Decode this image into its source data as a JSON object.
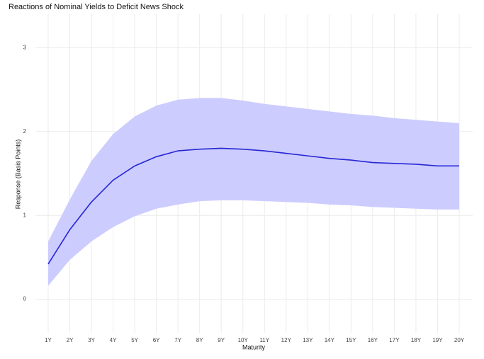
{
  "chart_data": {
    "type": "line",
    "title": "Reactions of Nominal Yields to Deficit News Shock",
    "x_label": "Maturity",
    "y_label": "Response (Basis Points)",
    "categories": [
      "1Y",
      "2Y",
      "3Y",
      "4Y",
      "5Y",
      "6Y",
      "7Y",
      "8Y",
      "9Y",
      "10Y",
      "11Y",
      "12Y",
      "13Y",
      "14Y",
      "15Y",
      "16Y",
      "17Y",
      "18Y",
      "19Y",
      "20Y"
    ],
    "series": [
      {
        "color": "#2626d4",
        "values": [
          0.42,
          0.83,
          1.16,
          1.42,
          1.59,
          1.7,
          1.77,
          1.79,
          1.8,
          1.79,
          1.77,
          1.74,
          1.71,
          1.68,
          1.66,
          1.63,
          1.62,
          1.61,
          1.59,
          1.59
        ],
        "upper": [
          0.69,
          1.19,
          1.65,
          1.97,
          2.18,
          2.31,
          2.38,
          2.4,
          2.4,
          2.37,
          2.33,
          2.3,
          2.27,
          2.24,
          2.21,
          2.19,
          2.16,
          2.14,
          2.12,
          2.1
        ],
        "lower": [
          0.16,
          0.47,
          0.69,
          0.86,
          0.99,
          1.08,
          1.13,
          1.17,
          1.18,
          1.18,
          1.17,
          1.16,
          1.15,
          1.13,
          1.12,
          1.1,
          1.09,
          1.08,
          1.07,
          1.07
        ],
        "band_color": "#ccccff"
      }
    ],
    "ylim": [
      -0.4,
      3.4
    ],
    "yticks": [
      0,
      1,
      2,
      3
    ],
    "grid": true
  }
}
